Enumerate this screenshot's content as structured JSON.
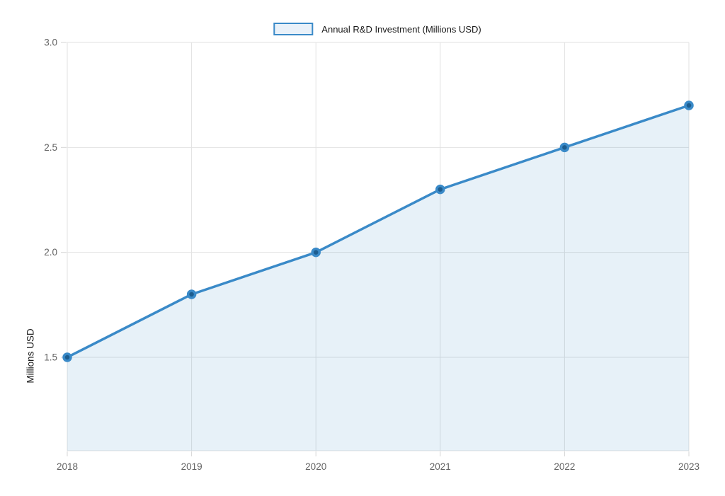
{
  "legend": {
    "label": "Annual R&D Investment (Millions USD)"
  },
  "chart_data": {
    "type": "area",
    "title": "",
    "xlabel": "",
    "ylabel": "Millions USD",
    "categories": [
      "2018",
      "2019",
      "2020",
      "2021",
      "2022",
      "2023"
    ],
    "values": [
      1.5,
      1.8,
      2.0,
      2.3,
      2.5,
      2.7
    ],
    "series": [
      {
        "name": "Annual R&D Investment (Millions USD)",
        "values": [
          1.5,
          1.8,
          2.0,
          2.3,
          2.5,
          2.7
        ]
      }
    ],
    "ylim": [
      1.055,
      3.0
    ],
    "yticks": [
      1.5,
      2.0,
      2.5,
      3.0
    ],
    "ytick_labels": [
      "1.5",
      "2.0",
      "2.5",
      "3.0"
    ],
    "xtick_labels": [
      "2018",
      "2019",
      "2020",
      "2021",
      "2022",
      "2023"
    ],
    "grid": true,
    "legend_position": "top-center",
    "marker": "circle",
    "colors": {
      "line": "#3a8ac8",
      "marker_fill": "#1d5d8f",
      "area_fill_rgba": "rgba(58,138,200,0.12)",
      "grid": "#e2e2e2",
      "axis_line": "#e2e2e2",
      "tick": "#d6d6d6",
      "tick_label": "#636363"
    }
  }
}
